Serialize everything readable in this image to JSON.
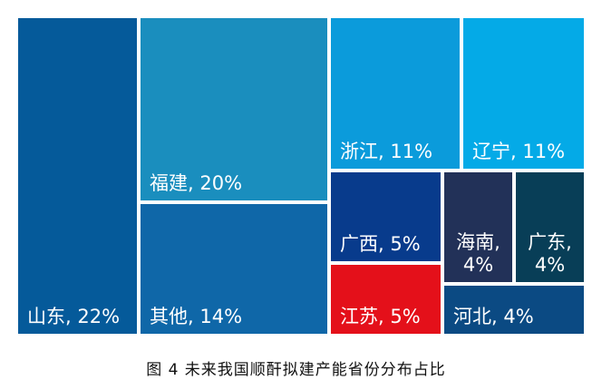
{
  "chart_data": {
    "type": "treemap",
    "title": "",
    "tiles": [
      {
        "label_lines": [
          "山东, 22%"
        ],
        "province": "山东",
        "share_pct": 22,
        "color": "#055A9A"
      },
      {
        "label_lines": [
          "福建, 20%"
        ],
        "province": "福建",
        "share_pct": 20,
        "color": "#1A8EBE"
      },
      {
        "label_lines": [
          "其他, 14%"
        ],
        "province": "其他",
        "share_pct": 14,
        "color": "#0F67A8"
      },
      {
        "label_lines": [
          "浙江, 11%"
        ],
        "province": "浙江",
        "share_pct": 11,
        "color": "#0B9BDB"
      },
      {
        "label_lines": [
          "辽宁, 11%"
        ],
        "province": "辽宁",
        "share_pct": 11,
        "color": "#04AAE7"
      },
      {
        "label_lines": [
          "广西, 5%"
        ],
        "province": "广西",
        "share_pct": 5,
        "color": "#083B8C"
      },
      {
        "label_lines": [
          "江苏, 5%"
        ],
        "province": "江苏",
        "share_pct": 5,
        "color": "#E4101A"
      },
      {
        "label_lines": [
          "海南,",
          "4%"
        ],
        "province": "海南",
        "share_pct": 4,
        "color": "#223158"
      },
      {
        "label_lines": [
          "广东,",
          "4%"
        ],
        "province": "广东",
        "share_pct": 4,
        "color": "#083E57"
      },
      {
        "label_lines": [
          "河北, 4%"
        ],
        "province": "河北",
        "share_pct": 4,
        "color": "#0B4A83"
      }
    ]
  },
  "caption": "图 4  未来我国顺酐拟建产能省份分布占比"
}
